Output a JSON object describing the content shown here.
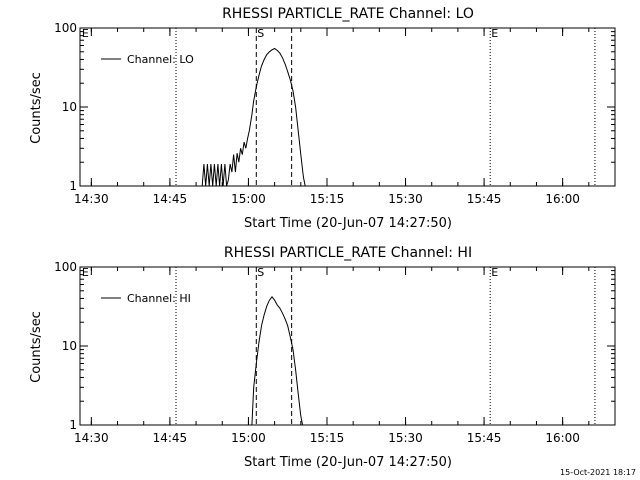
{
  "chart_data": [
    {
      "type": "line",
      "title": "RHESSI PARTICLE_RATE Channel: LO",
      "xlabel": "Start Time (20-Jun-07 14:27:50)",
      "ylabel": "Counts/sec",
      "yscale": "log",
      "ylim": [
        1,
        100
      ],
      "xlim": [
        "14:27:50",
        "16:10:00"
      ],
      "xticks": [
        "14:30",
        "14:45",
        "15:00",
        "15:15",
        "15:30",
        "15:45",
        "16:00"
      ],
      "yticks": [
        "1",
        "10",
        "100"
      ],
      "grid": false,
      "legend_position": "top-left",
      "series": [
        {
          "name": "Channel: LO",
          "x": [
            "14:51:10",
            "14:51:30",
            "14:51:50",
            "14:52:10",
            "14:52:30",
            "14:52:50",
            "14:53:10",
            "14:53:30",
            "14:53:50",
            "14:54:10",
            "14:54:30",
            "14:54:50",
            "14:55:10",
            "14:55:30",
            "14:55:50",
            "14:56:10",
            "14:56:30",
            "14:56:50",
            "14:57:10",
            "14:57:30",
            "14:57:50",
            "14:58:10",
            "14:58:30",
            "14:58:50",
            "14:59:10",
            "14:59:30",
            "14:59:50",
            "15:00:10",
            "15:00:40",
            "15:01:00",
            "15:01:30",
            "15:02:00",
            "15:02:30",
            "15:03:00",
            "15:03:30",
            "15:04:00",
            "15:04:30",
            "15:05:00",
            "15:05:30",
            "15:06:00",
            "15:06:30",
            "15:07:00",
            "15:07:30",
            "15:08:00",
            "15:08:30",
            "15:09:00",
            "15:09:30",
            "15:10:00",
            "15:10:30",
            "15:10:50"
          ],
          "values": [
            1,
            1.9,
            1,
            1.9,
            1,
            1.9,
            1,
            1.9,
            1,
            1.9,
            1,
            1.9,
            1,
            1.9,
            1,
            1.2,
            1.9,
            1.5,
            2.5,
            1.5,
            2.6,
            2,
            3,
            2.5,
            3.6,
            3,
            4,
            5,
            8,
            12,
            18,
            25,
            33,
            40,
            46,
            50,
            53,
            55,
            52,
            48,
            42,
            35,
            28,
            22,
            16,
            10,
            5,
            2.5,
            1.3,
            1
          ]
        }
      ],
      "markers": [
        {
          "label": "E",
          "time": "14:28:00",
          "style": "none"
        },
        {
          "label": "",
          "time": "14:46:10",
          "style": "dotted"
        },
        {
          "label": "S",
          "time": "15:01:30",
          "style": "dashed"
        },
        {
          "label": "",
          "time": "15:08:15",
          "style": "dashed"
        },
        {
          "label": "E",
          "time": "15:46:10",
          "style": "dotted"
        },
        {
          "label": "",
          "time": "16:06:10",
          "style": "dotted"
        }
      ]
    },
    {
      "type": "line",
      "title": "RHESSI PARTICLE_RATE Channel: HI",
      "xlabel": "Start Time (20-Jun-07 14:27:50)",
      "ylabel": "Counts/sec",
      "yscale": "log",
      "ylim": [
        1,
        100
      ],
      "xlim": [
        "14:27:50",
        "16:10:00"
      ],
      "xticks": [
        "14:30",
        "14:45",
        "15:00",
        "15:15",
        "15:30",
        "15:45",
        "16:00"
      ],
      "yticks": [
        "1",
        "10",
        "100"
      ],
      "grid": false,
      "legend_position": "top-left",
      "series": [
        {
          "name": "Channel: HI",
          "x": [
            "15:00:40",
            "15:01:00",
            "15:01:30",
            "15:02:00",
            "15:02:30",
            "15:03:00",
            "15:03:30",
            "15:04:00",
            "15:04:30",
            "15:05:00",
            "15:05:30",
            "15:06:00",
            "15:06:30",
            "15:07:00",
            "15:07:30",
            "15:08:00",
            "15:08:30",
            "15:09:00",
            "15:09:30",
            "15:10:00",
            "15:10:20"
          ],
          "values": [
            1,
            3,
            6,
            11,
            18,
            25,
            32,
            38,
            42,
            38,
            33,
            30,
            26,
            22,
            18,
            13,
            9,
            5,
            2.5,
            1.3,
            1
          ]
        }
      ],
      "markers": [
        {
          "label": "E",
          "time": "14:28:00",
          "style": "none"
        },
        {
          "label": "",
          "time": "14:46:10",
          "style": "dotted"
        },
        {
          "label": "S",
          "time": "15:01:30",
          "style": "dashed"
        },
        {
          "label": "",
          "time": "15:08:15",
          "style": "dashed"
        },
        {
          "label": "E",
          "time": "15:46:10",
          "style": "dotted"
        },
        {
          "label": "",
          "time": "16:06:10",
          "style": "dotted"
        }
      ]
    }
  ],
  "footer": {
    "timestamp": "15-Oct-2021 18:17"
  }
}
